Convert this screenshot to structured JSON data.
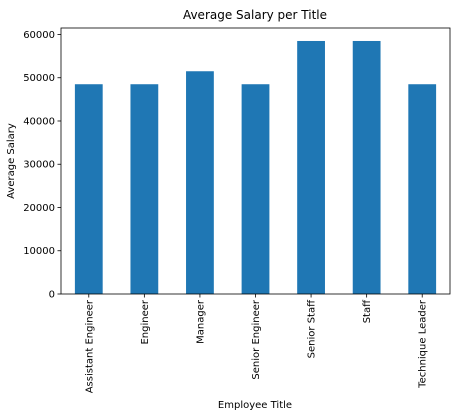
{
  "chart_data": {
    "type": "bar",
    "title": "Average Salary per Title",
    "xlabel": "Employee Title",
    "ylabel": "Average Salary",
    "categories": [
      "Assistant Engineer",
      "Engineer",
      "Manager",
      "Senior Engineer",
      "Senior Staff",
      "Staff",
      "Technique Leader"
    ],
    "values": [
      48500,
      48500,
      51500,
      48500,
      58500,
      58500,
      48500
    ],
    "ylim": [
      0,
      61500
    ],
    "yticks": [
      0,
      10000,
      20000,
      30000,
      40000,
      50000,
      60000
    ],
    "grid": false,
    "bar_color": "#1f77b4"
  }
}
